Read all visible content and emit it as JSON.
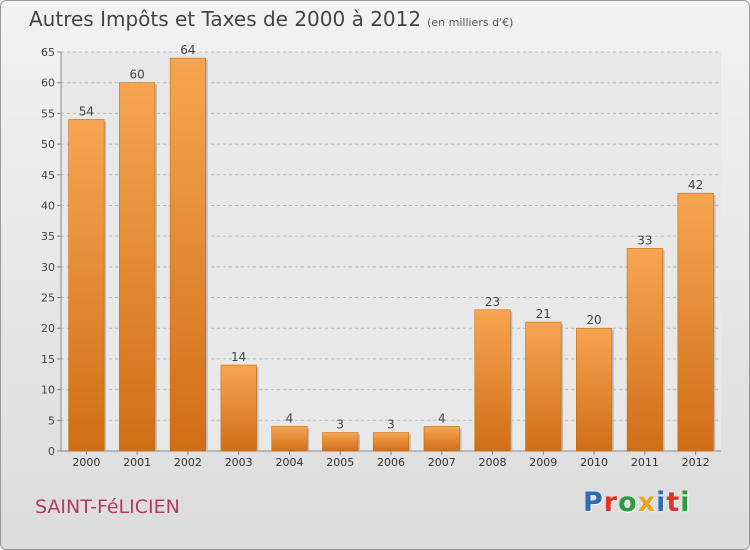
{
  "chart_data": {
    "type": "bar",
    "title": "Autres Impôts et Taxes de 2000 à 2012",
    "subtitle": "(en milliers d'€)",
    "categories": [
      "2000",
      "2001",
      "2002",
      "2003",
      "2004",
      "2005",
      "2006",
      "2007",
      "2008",
      "2009",
      "2010",
      "2011",
      "2012"
    ],
    "values": [
      54,
      60,
      64,
      14,
      4,
      3,
      3,
      4,
      23,
      21,
      20,
      33,
      42
    ],
    "ylim": [
      0,
      65
    ],
    "yticks": [
      0,
      5,
      10,
      15,
      20,
      25,
      30,
      35,
      40,
      45,
      50,
      55,
      60,
      65
    ],
    "grid": true,
    "bar_color": "#f08c2e"
  },
  "footer": {
    "town": "SAINT-FéLICIEN",
    "logo": "Proxiti",
    "logo_colors": [
      "#2e6db5",
      "#e2332b",
      "#2e9a3c",
      "#f0a21d",
      "#2e6db5",
      "#e2332b",
      "#2e9a3c"
    ]
  }
}
